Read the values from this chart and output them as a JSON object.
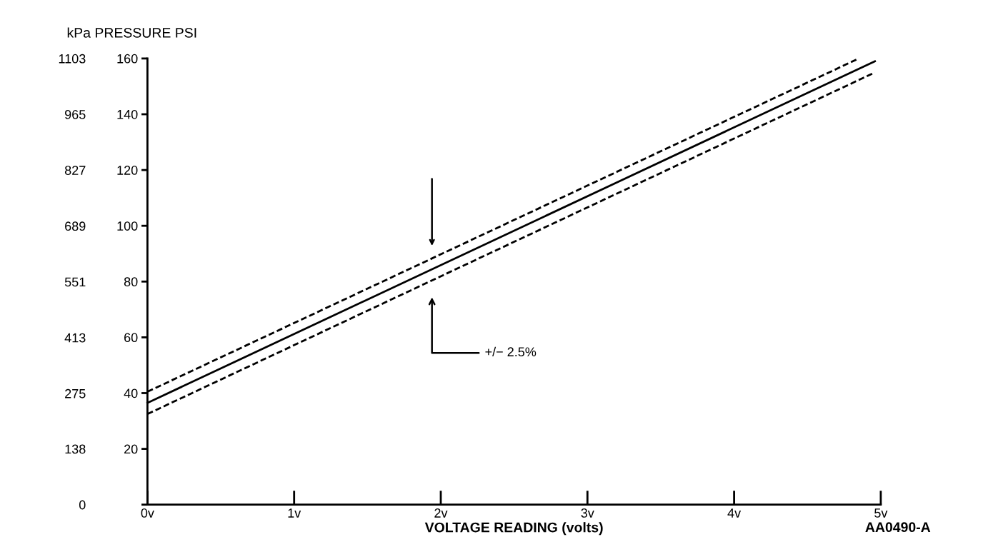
{
  "chart_data": {
    "type": "line",
    "ylabel": "kPa PRESSURE PSI",
    "xlabel": "VOLTAGE READING (volts)",
    "x": [
      0,
      4.96
    ],
    "series": [
      {
        "color": "#000000",
        "line_style": "dashed",
        "x": [
          0,
          4.85
        ],
        "values": [
          40.5,
          160
        ]
      },
      {
        "color": "#000000",
        "line_style": "solid",
        "values": [
          36.5,
          159
        ]
      },
      {
        "color": "#000000",
        "line_style": "dashed",
        "values": [
          32.5,
          155
        ]
      }
    ],
    "xlim": [
      0,
      5
    ],
    "xticks": [
      {
        "value": 0,
        "label": "0v"
      },
      {
        "value": 1,
        "label": "1v"
      },
      {
        "value": 2,
        "label": "2v"
      },
      {
        "value": 3,
        "label": "3v"
      },
      {
        "value": 4,
        "label": "4v"
      },
      {
        "value": 5,
        "label": "5v"
      }
    ],
    "ylim": [
      0,
      160
    ],
    "yticks": [
      {
        "value": 0,
        "label": null
      },
      20,
      40,
      60,
      80,
      100,
      120,
      140,
      160
    ],
    "y2lim": [
      0,
      1103
    ],
    "y2ticks": [
      0,
      138,
      275,
      413,
      551,
      689,
      827,
      965,
      1103
    ],
    "annotations": [
      "+/− 2.5%",
      "AA0490-A"
    ],
    "grid": false
  }
}
